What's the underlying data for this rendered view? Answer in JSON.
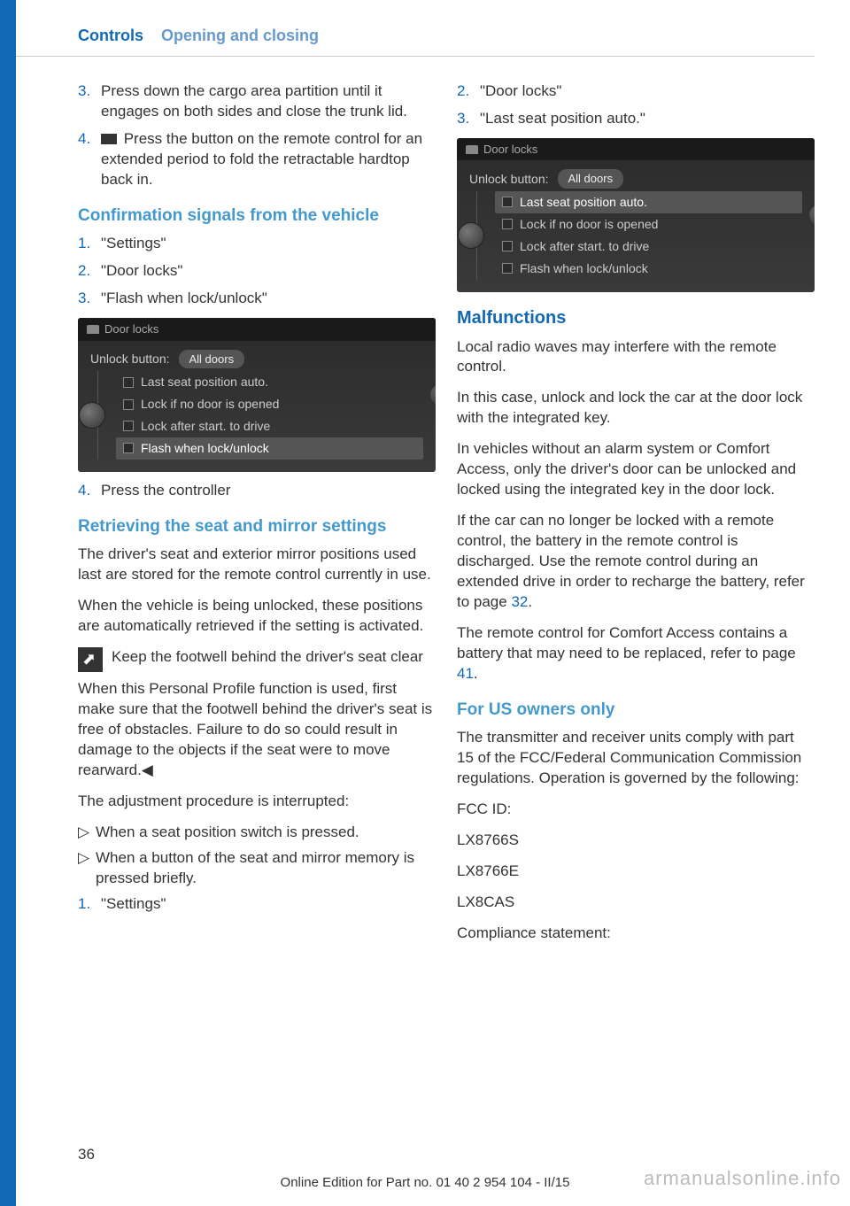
{
  "header": {
    "controls": "Controls",
    "section": "Opening and closing"
  },
  "left_column": {
    "steps_a": [
      {
        "num": "3.",
        "text": "Press down the cargo area partition until it engages on both sides and close the trunk lid."
      },
      {
        "num": "4.",
        "text": "  Press the button on the remote control for an extended period to fold the retracta­ble hardtop back in.",
        "has_icon": true
      }
    ],
    "h_confirmation": "Confirmation signals from the vehicle",
    "steps_b": [
      {
        "num": "1.",
        "text": "\"Settings\""
      },
      {
        "num": "2.",
        "text": "\"Door locks\""
      },
      {
        "num": "3.",
        "text": "\"Flash when lock/unlock\""
      }
    ],
    "screenshot1": {
      "title": "Door locks",
      "unlock_label": "Unlock button:",
      "unlock_value": "All doors",
      "items": [
        {
          "text": "Last seat position auto.",
          "highlighted": false
        },
        {
          "text": "Lock if no door is opened",
          "highlighted": false
        },
        {
          "text": "Lock after start. to drive",
          "highlighted": false
        },
        {
          "text": "Flash when lock/unlock",
          "highlighted": true
        }
      ]
    },
    "step_4": {
      "num": "4.",
      "text": "Press the controller"
    },
    "h_retrieving": "Retrieving the seat and mirror settings",
    "para1": "The driver's seat and exterior mirror positions used last are stored for the remote control cur­rently in use.",
    "para2": "When the vehicle is being unlocked, these po­sitions are automatically retrieved if the setting is activated.",
    "warning_title": "Keep the footwell behind the driver's seat clear",
    "para3": "When this Personal Profile function is used, first make sure that the footwell behind the driver's seat is free of obstacles. Failure to do so could result in damage to the objects if the seat were to move rearward.◀",
    "para4": "The adjustment procedure is interrupted:",
    "bullets": [
      "When a seat position switch is pressed.",
      "When a button of the seat and mirror mem­ory is pressed briefly."
    ],
    "step_1c": {
      "num": "1.",
      "text": "\"Settings\""
    }
  },
  "right_column": {
    "steps_c": [
      {
        "num": "2.",
        "text": "\"Door locks\""
      },
      {
        "num": "3.",
        "text": "\"Last seat position auto.\""
      }
    ],
    "screenshot2": {
      "title": "Door locks",
      "unlock_label": "Unlock button:",
      "unlock_value": "All doors",
      "items": [
        {
          "text": "Last seat position auto.",
          "highlighted": true
        },
        {
          "text": "Lock if no door is opened",
          "highlighted": false
        },
        {
          "text": "Lock after start. to drive",
          "highlighted": false
        },
        {
          "text": "Flash when lock/unlock",
          "highlighted": false
        }
      ]
    },
    "h_malfunctions": "Malfunctions",
    "para1": "Local radio waves may interfere with the re­mote control.",
    "para2": "In this case, unlock and lock the car at the door lock with the integrated key.",
    "para3": "In vehicles without an alarm system or Comfort Access, only the driver's door can be unlocked and locked using the integrated key in the door lock.",
    "para4_a": "If the car can no longer be locked with a re­mote control, the battery in the remote control is discharged. Use the remote control during an extended drive in order to recharge the bat­tery, refer to page ",
    "para4_link": "32",
    "para4_b": ".",
    "para5_a": "The remote control for Comfort Access con­tains a battery that may need to be replaced, refer to page ",
    "para5_link": "41",
    "para5_b": ".",
    "h_us": "For US owners only",
    "para6": "The transmitter and receiver units comply with part 15 of the FCC/Federal Communication Commission regulations. Operation is gov­erned by the following:",
    "fcc_lines": [
      "FCC ID:",
      "LX8766S",
      "LX8766E",
      "LX8CAS",
      "Compliance statement:"
    ]
  },
  "page_number": "36",
  "footer": "Online Edition for Part no. 01 40 2 954 104 - II/15",
  "watermark": "armanualsonline.info"
}
